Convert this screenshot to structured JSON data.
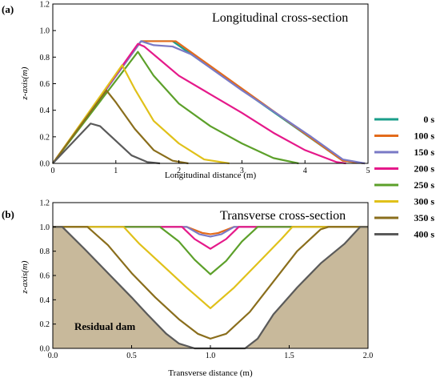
{
  "chart_data": [
    {
      "type": "line",
      "panel": "(a)",
      "title": "Longitudinal cross-section",
      "xlabel": "Longitudinal distance (m)",
      "ylabel": "z-axis(m)",
      "xlim": [
        0,
        5
      ],
      "ylim": [
        0,
        1.2
      ],
      "xticks": [
        "0",
        "1",
        "2",
        "3",
        "4",
        "5"
      ],
      "yticks": [
        "0.0",
        "0.2",
        "0.4",
        "0.6",
        "0.8",
        "1.0",
        "1.2"
      ],
      "series": [
        {
          "name": "0 s",
          "color": "#1a9e8a",
          "x": [
            0,
            1.4,
            1.9,
            4.6,
            4.95
          ],
          "y": [
            0,
            0.92,
            0.92,
            0.02,
            0
          ]
        },
        {
          "name": "100 s",
          "color": "#e36b1b",
          "x": [
            0,
            1.4,
            1.95,
            4.6,
            4.95
          ],
          "y": [
            0,
            0.92,
            0.92,
            0.02,
            0
          ]
        },
        {
          "name": "150 s",
          "color": "#7a7ac6",
          "x": [
            0,
            1.4,
            1.6,
            1.9,
            2.2,
            3.0,
            3.6,
            4.1,
            4.6,
            4.95
          ],
          "y": [
            0,
            0.92,
            0.89,
            0.88,
            0.82,
            0.55,
            0.36,
            0.2,
            0.03,
            0
          ]
        },
        {
          "name": "200 s",
          "color": "#e5198a",
          "x": [
            0,
            1.35,
            1.45,
            1.7,
            2.0,
            2.5,
            3.0,
            3.5,
            4.0,
            4.5,
            4.65
          ],
          "y": [
            0,
            0.9,
            0.88,
            0.78,
            0.66,
            0.52,
            0.38,
            0.23,
            0.1,
            0.01,
            0
          ]
        },
        {
          "name": "250 s",
          "color": "#5ca02a",
          "x": [
            0,
            1.35,
            1.6,
            2.0,
            2.5,
            3.0,
            3.5,
            3.9
          ],
          "y": [
            0,
            0.84,
            0.66,
            0.45,
            0.28,
            0.15,
            0.04,
            0
          ]
        },
        {
          "name": "300 s",
          "color": "#e0c11a",
          "x": [
            0,
            1.1,
            1.3,
            1.6,
            2.0,
            2.4,
            2.8
          ],
          "y": [
            0,
            0.74,
            0.56,
            0.32,
            0.15,
            0.03,
            0
          ]
        },
        {
          "name": "350 s",
          "color": "#8a6e1c",
          "x": [
            0,
            0.85,
            1.0,
            1.3,
            1.6,
            1.9,
            2.15
          ],
          "y": [
            0,
            0.55,
            0.46,
            0.26,
            0.1,
            0.02,
            0
          ]
        },
        {
          "name": "400 s",
          "color": "#5a5a5a",
          "x": [
            0,
            0.6,
            0.75,
            1.0,
            1.25,
            1.5,
            1.7
          ],
          "y": [
            0,
            0.3,
            0.28,
            0.17,
            0.06,
            0.01,
            0
          ]
        }
      ]
    },
    {
      "type": "area",
      "panel": "(b)",
      "title": "Transverse cross-section",
      "xlabel": "Transverse distance (m)",
      "ylabel": "z-axis(m)",
      "xlim": [
        0,
        2.0
      ],
      "ylim": [
        0,
        1.2
      ],
      "xticks": [
        "0.0",
        "0.5",
        "1.0",
        "1.5",
        "2.0"
      ],
      "yticks": [
        "0.0",
        "0.2",
        "0.4",
        "0.6",
        "0.8",
        "1.0",
        "1.2"
      ],
      "annotation": "Residual dam",
      "dam_fill": "#c8b99b",
      "series": [
        {
          "name": "100 s",
          "color": "#e36b1b",
          "x": [
            0,
            0.85,
            0.95,
            1.0,
            1.05,
            1.15,
            2.0
          ],
          "y": [
            1.0,
            1.0,
            0.95,
            0.94,
            0.95,
            1.0,
            1.0
          ]
        },
        {
          "name": "150 s",
          "color": "#7a7ac6",
          "x": [
            0,
            0.85,
            0.93,
            1.0,
            1.07,
            1.15,
            2.0
          ],
          "y": [
            1.0,
            1.0,
            0.94,
            0.92,
            0.94,
            1.0,
            1.0
          ]
        },
        {
          "name": "200 s",
          "color": "#e5198a",
          "x": [
            0,
            0.82,
            0.9,
            1.0,
            1.1,
            1.18,
            2.0
          ],
          "y": [
            1.0,
            1.0,
            0.9,
            0.82,
            0.9,
            1.0,
            1.0
          ]
        },
        {
          "name": "250 s",
          "color": "#5ca02a",
          "x": [
            0,
            0.68,
            0.8,
            0.9,
            1.0,
            1.1,
            1.2,
            1.3,
            2.0
          ],
          "y": [
            1.0,
            1.0,
            0.88,
            0.73,
            0.61,
            0.72,
            0.88,
            1.0,
            1.0
          ]
        },
        {
          "name": "300 s",
          "color": "#e0c11a",
          "x": [
            0,
            0.45,
            0.55,
            0.7,
            0.85,
            1.0,
            1.15,
            1.3,
            1.45,
            1.52,
            2.0
          ],
          "y": [
            1.0,
            1.0,
            0.86,
            0.68,
            0.5,
            0.33,
            0.5,
            0.7,
            0.9,
            1.0,
            1.0
          ]
        },
        {
          "name": "350 s",
          "color": "#8a6e1c",
          "x": [
            0,
            0.22,
            0.35,
            0.5,
            0.65,
            0.8,
            0.92,
            1.0,
            1.1,
            1.25,
            1.4,
            1.55,
            1.7,
            1.75,
            2.0
          ],
          "y": [
            1.0,
            1.0,
            0.85,
            0.62,
            0.42,
            0.24,
            0.12,
            0.08,
            0.12,
            0.3,
            0.55,
            0.8,
            0.98,
            1.0,
            1.0
          ]
        },
        {
          "name": "400 s",
          "color": "#5a5a5a",
          "x": [
            0,
            0.06,
            0.2,
            0.35,
            0.5,
            0.6,
            0.72,
            0.8,
            0.9,
            1.0,
            1.15,
            1.22,
            1.3,
            1.4,
            1.55,
            1.7,
            1.85,
            1.95,
            2.0
          ],
          "y": [
            1.0,
            1.0,
            0.82,
            0.62,
            0.42,
            0.28,
            0.12,
            0.04,
            0.0,
            0.0,
            0.0,
            0.0,
            0.08,
            0.28,
            0.5,
            0.7,
            0.86,
            1.0,
            1.0
          ]
        }
      ]
    }
  ],
  "legend": [
    {
      "label": "0 s",
      "color": "#1a9e8a"
    },
    {
      "label": "100 s",
      "color": "#e36b1b"
    },
    {
      "label": "150 s",
      "color": "#7a7ac6"
    },
    {
      "label": "200 s",
      "color": "#e5198a"
    },
    {
      "label": "250 s",
      "color": "#5ca02a"
    },
    {
      "label": "300 s",
      "color": "#e0c11a"
    },
    {
      "label": "350 s",
      "color": "#8a6e1c"
    },
    {
      "label": "400 s",
      "color": "#5a5a5a"
    }
  ]
}
